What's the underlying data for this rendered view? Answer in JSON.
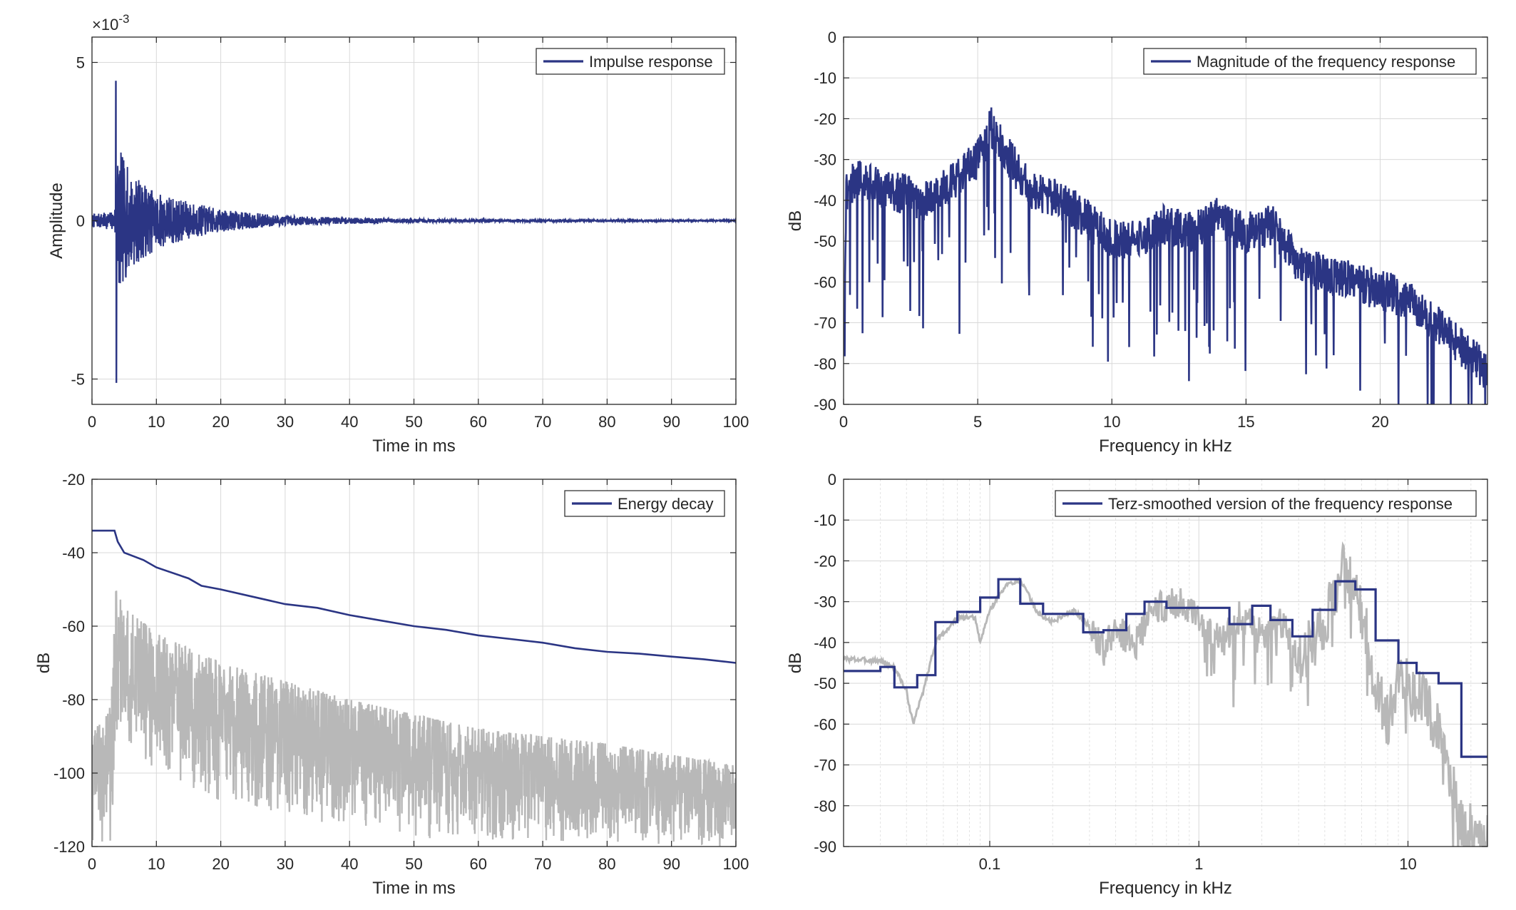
{
  "colors": {
    "primary": "#2b3584",
    "secondary": "#b8b8b8",
    "grid": "#d9d9d9",
    "axis": "#262626"
  },
  "chart_data": [
    {
      "type": "line",
      "id": "impulse",
      "xlabel": "Time in ms",
      "ylabel": "Amplitude",
      "exponent_label": "×10",
      "exponent_power": "-3",
      "xlim": [
        0,
        100
      ],
      "ylim": [
        -5.8,
        5.8
      ],
      "xticks": [
        0,
        10,
        20,
        30,
        40,
        50,
        60,
        70,
        80,
        90,
        100
      ],
      "yticks": [
        -5,
        0,
        5
      ],
      "grid": true,
      "legend_position": "top-right",
      "series": [
        {
          "name": "Impulse response",
          "color": "#2b3584",
          "synthetic_peak": {
            "time_ms": 3.7,
            "max": 4.4,
            "min": -5.1
          },
          "decay_envelope": [
            [
              0,
              0.2
            ],
            [
              3.5,
              0.3
            ],
            [
              4,
              2.4
            ],
            [
              6,
              1.5
            ],
            [
              10,
              0.9
            ],
            [
              15,
              0.6
            ],
            [
              20,
              0.35
            ],
            [
              30,
              0.15
            ],
            [
              40,
              0.1
            ],
            [
              50,
              0.06
            ],
            [
              70,
              0.03
            ],
            [
              100,
              0.02
            ]
          ]
        }
      ]
    },
    {
      "type": "line",
      "id": "magnitude",
      "xlabel": "Frequency in kHz",
      "ylabel": "dB",
      "xlim": [
        0,
        24
      ],
      "ylim": [
        -90,
        0
      ],
      "xticks": [
        0,
        5,
        10,
        15,
        20
      ],
      "yticks": [
        0,
        -10,
        -20,
        -30,
        -40,
        -50,
        -60,
        -70,
        -80,
        -90
      ],
      "grid": true,
      "legend_position": "top-right",
      "series": [
        {
          "name": "Magnitude of the frequency response",
          "color": "#2b3584",
          "envelope": [
            [
              0,
              -78
            ],
            [
              0.1,
              -38
            ],
            [
              0.5,
              -34
            ],
            [
              1,
              -36
            ],
            [
              2,
              -38
            ],
            [
              3,
              -40
            ],
            [
              4,
              -36
            ],
            [
              5,
              -30
            ],
            [
              5.5,
              -22
            ],
            [
              6,
              -28
            ],
            [
              7,
              -38
            ],
            [
              8,
              -40
            ],
            [
              9,
              -44
            ],
            [
              10,
              -50
            ],
            [
              11,
              -50
            ],
            [
              12,
              -46
            ],
            [
              13,
              -48
            ],
            [
              14,
              -44
            ],
            [
              15,
              -48
            ],
            [
              16,
              -46
            ],
            [
              17,
              -56
            ],
            [
              18,
              -58
            ],
            [
              19,
              -60
            ],
            [
              20,
              -62
            ],
            [
              21,
              -64
            ],
            [
              22,
              -70
            ],
            [
              23,
              -76
            ],
            [
              24,
              -82
            ]
          ]
        }
      ]
    },
    {
      "type": "line",
      "id": "decay",
      "xlabel": "Time in ms",
      "ylabel": "dB",
      "xlim": [
        0,
        100
      ],
      "ylim": [
        -120,
        -20
      ],
      "xticks": [
        0,
        10,
        20,
        30,
        40,
        50,
        60,
        70,
        80,
        90,
        100
      ],
      "yticks": [
        -20,
        -40,
        -60,
        -80,
        -100,
        -120
      ],
      "grid": true,
      "legend_position": "top-right",
      "series": [
        {
          "name": "Energy decay",
          "color": "#2b3584",
          "x": [
            0,
            3.5,
            4,
            5,
            8,
            10,
            15,
            17,
            20,
            25,
            30,
            35,
            40,
            45,
            50,
            55,
            60,
            65,
            70,
            75,
            80,
            85,
            90,
            95,
            100
          ],
          "y": [
            -34,
            -34,
            -37,
            -40,
            -42,
            -44,
            -47,
            -49,
            -50,
            -52,
            -54,
            -55,
            -57,
            -58.5,
            -60,
            -61,
            -62.5,
            -63.5,
            -64.5,
            -66,
            -67,
            -67.5,
            -68.3,
            -69,
            -70
          ]
        },
        {
          "name": "",
          "color": "#b8b8b8",
          "envelope_top": [
            [
              0,
              -90
            ],
            [
              3,
              -80
            ],
            [
              3.7,
              -50
            ],
            [
              5,
              -55
            ],
            [
              10,
              -62
            ],
            [
              20,
              -70
            ],
            [
              30,
              -75
            ],
            [
              40,
              -80
            ],
            [
              50,
              -84
            ],
            [
              60,
              -88
            ],
            [
              70,
              -90
            ],
            [
              80,
              -92
            ],
            [
              90,
              -95
            ],
            [
              100,
              -98
            ]
          ],
          "envelope_bottom": [
            [
              0,
              -120
            ],
            [
              3,
              -120
            ],
            [
              4,
              -90
            ],
            [
              10,
              -100
            ],
            [
              20,
              -108
            ],
            [
              30,
              -112
            ],
            [
              50,
              -118
            ],
            [
              100,
              -120
            ]
          ]
        }
      ]
    },
    {
      "type": "line",
      "id": "terz",
      "xlabel": "Frequency in kHz",
      "ylabel": "dB",
      "xscale": "log",
      "xlim": [
        0.02,
        24
      ],
      "ylim": [
        -90,
        0
      ],
      "xticks": [
        0.1,
        1,
        10
      ],
      "xtick_labels": [
        "0.1",
        "1",
        "10"
      ],
      "yticks": [
        0,
        -10,
        -20,
        -30,
        -40,
        -50,
        -60,
        -70,
        -80,
        -90
      ],
      "grid": true,
      "legend_position": "top-right",
      "series": [
        {
          "name": "Terz-smoothed version of the frequency response",
          "color": "#2b3584",
          "steps": [
            [
              0.02,
              -47
            ],
            [
              0.025,
              -47
            ],
            [
              0.03,
              -46
            ],
            [
              0.035,
              -51
            ],
            [
              0.045,
              -48
            ],
            [
              0.055,
              -35
            ],
            [
              0.07,
              -32.5
            ],
            [
              0.09,
              -29
            ],
            [
              0.11,
              -24.5
            ],
            [
              0.14,
              -30.5
            ],
            [
              0.18,
              -33
            ],
            [
              0.22,
              -33
            ],
            [
              0.28,
              -37.5
            ],
            [
              0.35,
              -37
            ],
            [
              0.45,
              -33
            ],
            [
              0.55,
              -30
            ],
            [
              0.7,
              -31.5
            ],
            [
              0.9,
              -31.5
            ],
            [
              1.1,
              -31.5
            ],
            [
              1.4,
              -35.5
            ],
            [
              1.8,
              -31
            ],
            [
              2.2,
              -34.5
            ],
            [
              2.8,
              -38.5
            ],
            [
              3.5,
              -32
            ],
            [
              4.5,
              -25
            ],
            [
              5.6,
              -27
            ],
            [
              7,
              -39.5
            ],
            [
              9,
              -45
            ],
            [
              11,
              -47.5
            ],
            [
              14,
              -50
            ],
            [
              18,
              -68
            ],
            [
              24,
              -68
            ]
          ]
        },
        {
          "name": "",
          "color": "#b8b8b8",
          "curve": [
            [
              0.02,
              -44
            ],
            [
              0.03,
              -44.5
            ],
            [
              0.035,
              -46
            ],
            [
              0.04,
              -52
            ],
            [
              0.043,
              -60
            ],
            [
              0.048,
              -52
            ],
            [
              0.055,
              -40
            ],
            [
              0.07,
              -34
            ],
            [
              0.085,
              -34
            ],
            [
              0.09,
              -40
            ],
            [
              0.1,
              -32
            ],
            [
              0.12,
              -26
            ],
            [
              0.14,
              -24.5
            ],
            [
              0.17,
              -33
            ],
            [
              0.2,
              -35
            ],
            [
              0.25,
              -32
            ],
            [
              0.3,
              -36
            ],
            [
              0.35,
              -42
            ],
            [
              0.4,
              -37
            ],
            [
              0.5,
              -40
            ],
            [
              0.6,
              -32
            ],
            [
              0.8,
              -30
            ],
            [
              1,
              -35
            ],
            [
              1.3,
              -40
            ],
            [
              1.6,
              -33
            ],
            [
              2,
              -38
            ],
            [
              2.5,
              -35
            ],
            [
              3,
              -45
            ],
            [
              4,
              -35
            ],
            [
              5,
              -20
            ],
            [
              6,
              -32
            ],
            [
              7,
              -50
            ],
            [
              8,
              -60
            ],
            [
              9,
              -48
            ],
            [
              12,
              -55
            ],
            [
              15,
              -65
            ],
            [
              18,
              -85
            ],
            [
              24,
              -88
            ]
          ]
        }
      ]
    }
  ]
}
